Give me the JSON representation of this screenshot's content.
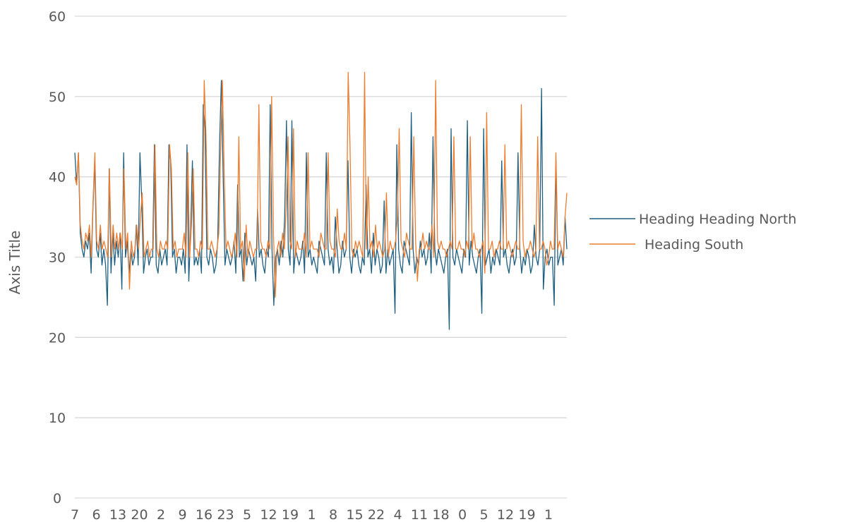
{
  "chart_data": {
    "type": "line",
    "title": "",
    "xlabel": "",
    "ylabel": "Axis Title",
    "ylim": [
      0,
      60
    ],
    "yticks": [
      0,
      10,
      20,
      30,
      40,
      50,
      60
    ],
    "grid": true,
    "legend_position": "right",
    "x_tick_labels": [
      "7",
      "6",
      "13",
      "20",
      "2",
      "9",
      "16",
      "23",
      "5",
      "12",
      "19",
      "1",
      "8",
      "15",
      "22",
      "4",
      "11",
      "18",
      "0",
      "5",
      "12",
      "19",
      "1"
    ],
    "series": [
      {
        "name": "Heading Heading North",
        "color": "#1f5f80",
        "values": [
          43,
          39,
          43,
          33,
          31,
          30,
          32,
          31,
          33,
          28,
          36,
          42,
          31,
          30,
          33,
          29,
          31,
          29,
          24,
          41,
          28,
          33,
          29,
          32,
          30,
          33,
          26,
          43,
          30,
          32,
          28,
          31,
          29,
          30,
          34,
          29,
          43,
          37,
          28,
          30,
          31,
          29,
          30,
          30,
          44,
          29,
          28,
          31,
          29,
          30,
          31,
          29,
          44,
          42,
          30,
          31,
          28,
          30,
          30,
          29,
          31,
          28,
          44,
          27,
          33,
          42,
          29,
          30,
          29,
          31,
          28,
          49,
          46,
          30,
          29,
          31,
          30,
          28,
          29,
          32,
          44,
          52,
          40,
          29,
          31,
          30,
          29,
          30,
          32,
          28,
          39,
          30,
          31,
          27,
          33,
          29,
          31,
          30,
          29,
          30,
          27,
          36,
          30,
          31,
          29,
          28,
          31,
          30,
          49,
          31,
          24,
          30,
          31,
          29,
          32,
          30,
          35,
          47,
          31,
          29,
          47,
          28,
          31,
          30,
          29,
          30,
          32,
          28,
          43,
          30,
          31,
          29,
          30,
          29,
          28,
          32,
          31,
          30,
          29,
          43,
          31,
          29,
          30,
          28,
          35,
          31,
          28,
          29,
          32,
          30,
          31,
          42,
          30,
          28,
          31,
          30,
          31,
          29,
          28,
          30,
          29,
          39,
          30,
          31,
          28,
          33,
          29,
          31,
          30,
          28,
          29,
          37,
          28,
          31,
          29,
          30,
          31,
          23,
          44,
          31,
          29,
          28,
          32,
          31,
          30,
          29,
          48,
          31,
          28,
          30,
          29,
          32,
          30,
          31,
          29,
          30,
          33,
          28,
          45,
          31,
          29,
          31,
          30,
          29,
          28,
          30,
          31,
          21,
          46,
          30,
          29,
          31,
          30,
          29,
          28,
          31,
          30,
          47,
          29,
          32,
          30,
          29,
          28,
          30,
          31,
          23,
          46,
          29,
          30,
          31,
          28,
          30,
          29,
          31,
          30,
          29,
          42,
          30,
          31,
          29,
          28,
          30,
          31,
          29,
          30,
          43,
          31,
          28,
          30,
          29,
          31,
          30,
          28,
          29,
          34,
          30,
          29,
          31,
          51,
          26,
          30,
          31,
          29,
          30,
          30,
          24,
          42,
          29,
          30,
          31,
          29,
          35,
          31
        ]
      },
      {
        "name": "Heading South",
        "color": "#ed7d31",
        "values": [
          40,
          39,
          43,
          34,
          32,
          31,
          33,
          32,
          34,
          30,
          37,
          43,
          32,
          31,
          34,
          31,
          32,
          31,
          30,
          41,
          30,
          34,
          31,
          33,
          31,
          33,
          31,
          41,
          31,
          33,
          26,
          32,
          30,
          31,
          34,
          31,
          35,
          38,
          30,
          31,
          32,
          30,
          31,
          31,
          44,
          31,
          30,
          32,
          31,
          31,
          32,
          31,
          44,
          41,
          31,
          32,
          30,
          31,
          31,
          31,
          33,
          30,
          43,
          30,
          34,
          41,
          31,
          31,
          30,
          32,
          31,
          52,
          45,
          31,
          31,
          32,
          31,
          30,
          31,
          33,
          43,
          52,
          40,
          31,
          32,
          31,
          30,
          31,
          33,
          30,
          45,
          31,
          32,
          27,
          34,
          30,
          32,
          31,
          30,
          31,
          31,
          49,
          32,
          31,
          31,
          30,
          32,
          31,
          50,
          33,
          25,
          31,
          32,
          30,
          33,
          31,
          36,
          45,
          32,
          31,
          46,
          30,
          32,
          31,
          31,
          31,
          33,
          30,
          43,
          31,
          32,
          31,
          31,
          31,
          30,
          33,
          32,
          31,
          31,
          43,
          32,
          31,
          31,
          30,
          36,
          32,
          31,
          31,
          33,
          31,
          53,
          44,
          31,
          30,
          32,
          31,
          32,
          31,
          30,
          53,
          31,
          40,
          31,
          32,
          30,
          34,
          31,
          32,
          31,
          30,
          31,
          38,
          30,
          32,
          31,
          31,
          32,
          35,
          46,
          32,
          31,
          30,
          33,
          32,
          31,
          31,
          45,
          32,
          27,
          31,
          31,
          33,
          31,
          32,
          31,
          31,
          34,
          30,
          52,
          32,
          31,
          32,
          31,
          31,
          30,
          31,
          32,
          31,
          45,
          31,
          31,
          32,
          31,
          31,
          30,
          32,
          31,
          45,
          31,
          33,
          31,
          31,
          30,
          31,
          32,
          28,
          48,
          31,
          31,
          32,
          30,
          31,
          31,
          32,
          31,
          31,
          44,
          31,
          32,
          31,
          30,
          31,
          32,
          31,
          31,
          49,
          32,
          30,
          31,
          31,
          32,
          31,
          30,
          31,
          45,
          31,
          31,
          32,
          31,
          29,
          30,
          32,
          31,
          31,
          43,
          31,
          32,
          31,
          30,
          35,
          38
        ]
      }
    ]
  }
}
